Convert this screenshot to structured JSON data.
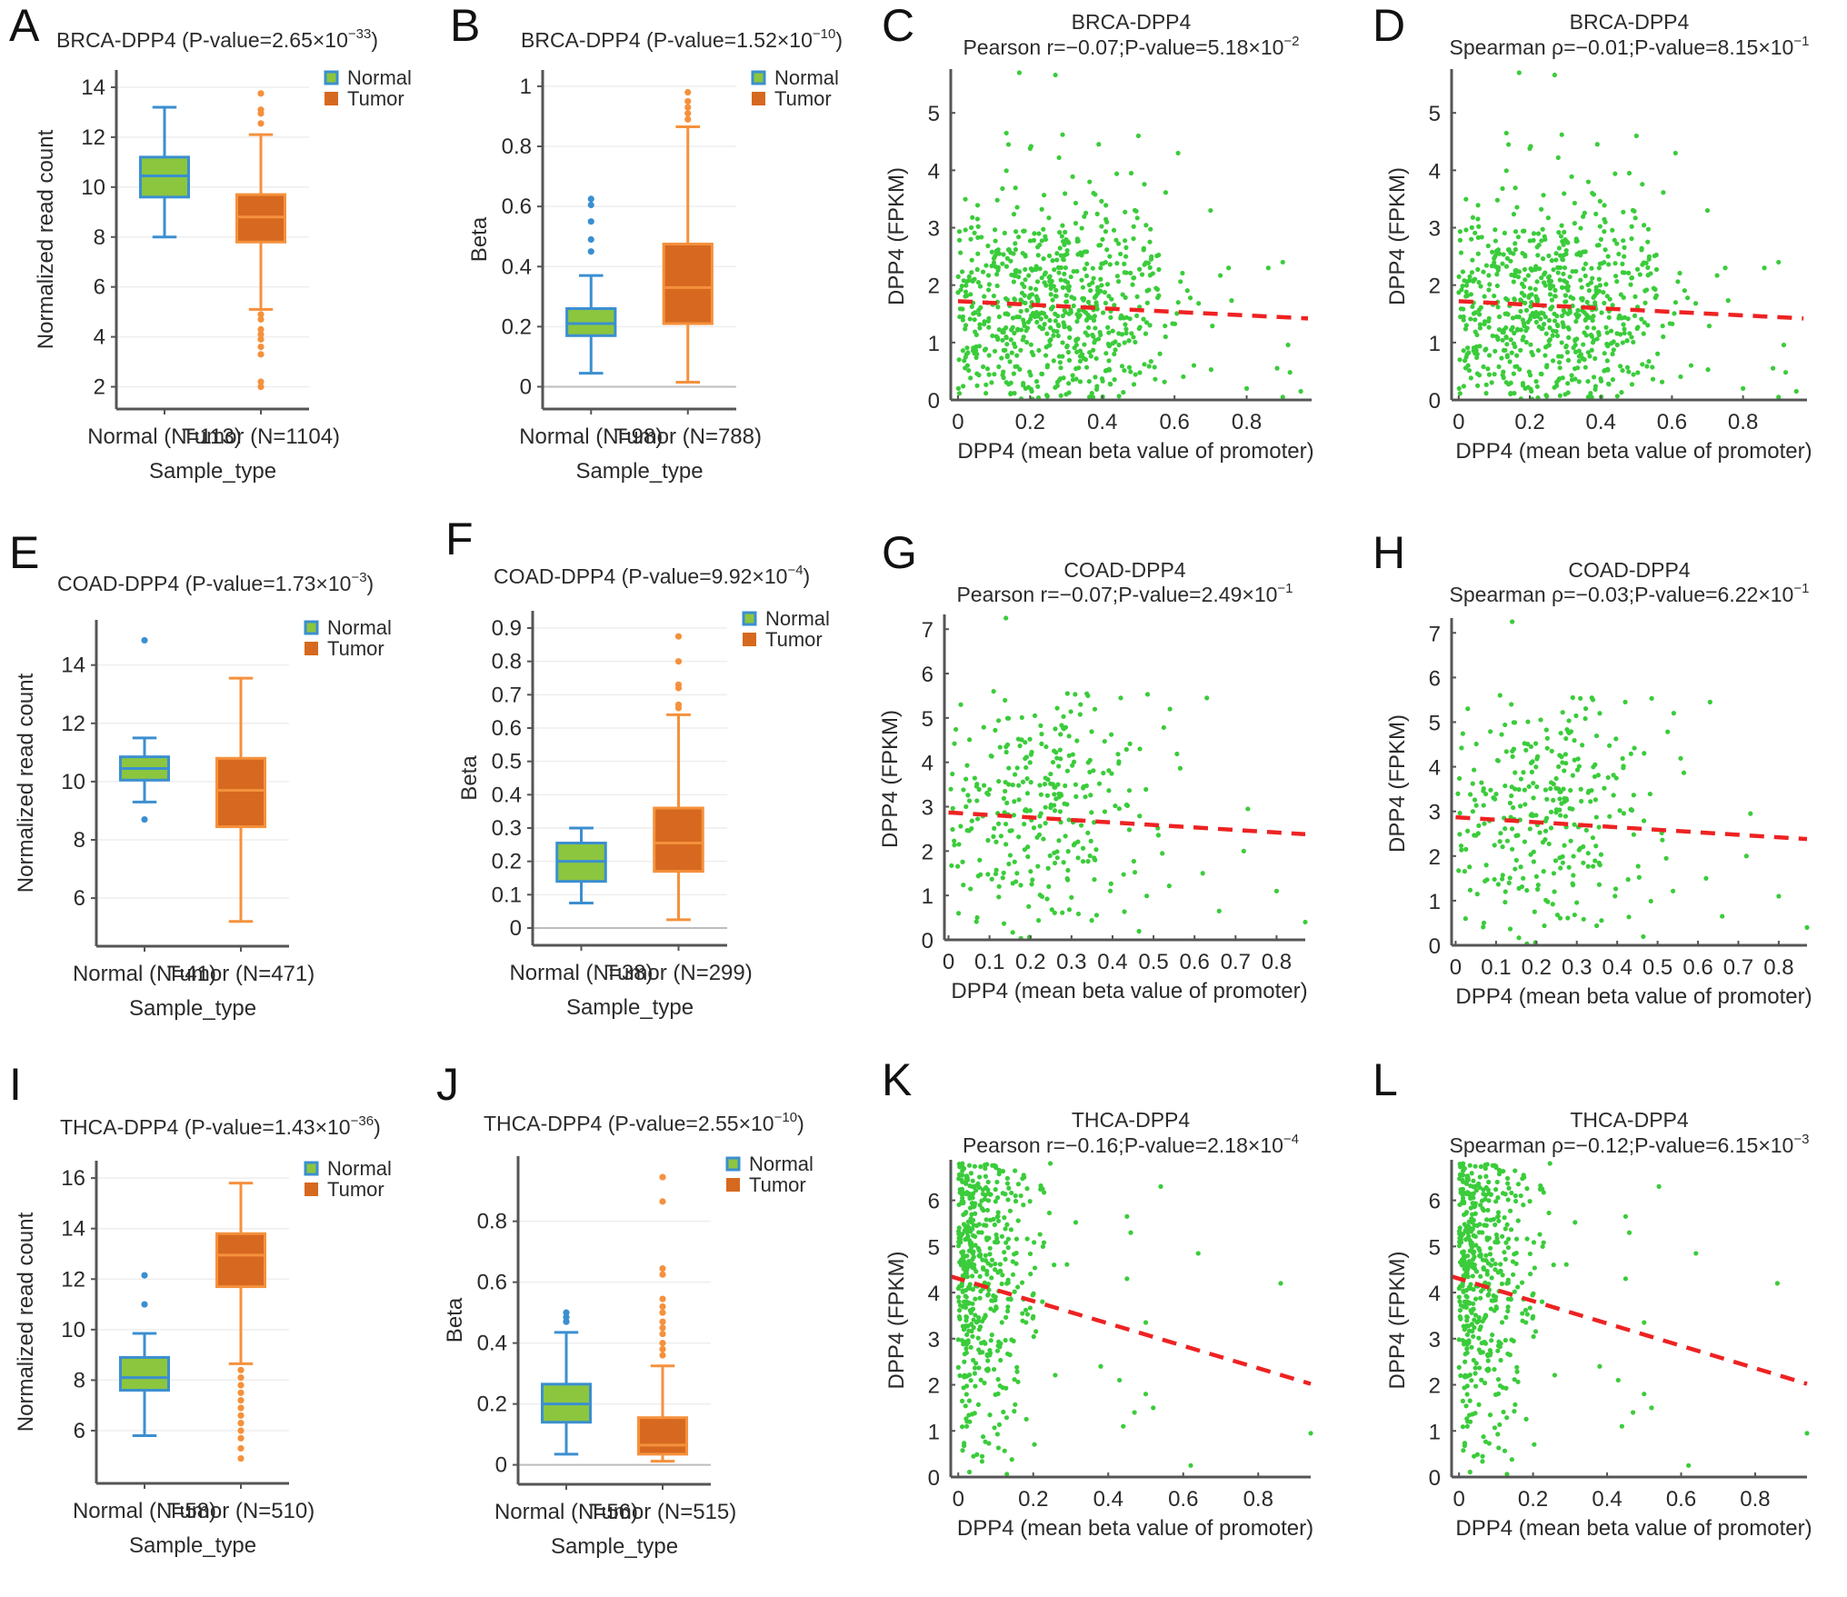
{
  "figure": {
    "colors": {
      "normal_fill": "#8cc63e",
      "normal_stroke": "#3b8fd0",
      "tumor_fill": "#d6691f",
      "tumor_stroke": "#f5913d",
      "scatter_point": "#3acc3a",
      "regression_line": "#ee2222",
      "axis": "#555555"
    },
    "legend": {
      "normal": "Normal",
      "tumor": "Tumor"
    }
  },
  "chart_data": [
    {
      "id": "A",
      "type": "box",
      "letter": "A",
      "title": "BRCA-DPP4 (P-value=2.65×10",
      "title_exp": "−33",
      "title_close": ")",
      "xlabel": "Sample_type",
      "ylabel": "Normalized read count",
      "ylim": [
        1.4,
        14.4
      ],
      "yticks": [
        2,
        4,
        6,
        8,
        10,
        12,
        14
      ],
      "zero_line": false,
      "groups": [
        {
          "name": "Normal",
          "label": "Normal (N=113)",
          "whisker_low": 8.0,
          "q1": 9.6,
          "median": 10.45,
          "q3": 11.2,
          "whisker_high": 13.2,
          "outliers": []
        },
        {
          "name": "Tumor",
          "label": "Tumor (N=1104)",
          "whisker_low": 5.1,
          "q1": 7.8,
          "median": 8.8,
          "q3": 9.7,
          "whisker_high": 12.1,
          "outliers": [
            13.75,
            13.1,
            12.95,
            12.55,
            4.9,
            4.7,
            4.3,
            4.1,
            3.9,
            3.6,
            3.3,
            2.2,
            2.0
          ]
        }
      ]
    },
    {
      "id": "B",
      "type": "box",
      "letter": "B",
      "title": "BRCA-DPP4 (P-value=1.52×10",
      "title_exp": "−10",
      "title_close": ")",
      "xlabel": "Sample_type",
      "ylabel": "Beta",
      "ylim": [
        -0.05,
        1.03
      ],
      "yticks": [
        0,
        0.2,
        0.4,
        0.6,
        0.8,
        1
      ],
      "zero_line": true,
      "groups": [
        {
          "name": "Normal",
          "label": "Normal (N=98)",
          "whisker_low": 0.045,
          "q1": 0.17,
          "median": 0.21,
          "q3": 0.26,
          "whisker_high": 0.37,
          "outliers": [
            0.625,
            0.605,
            0.55,
            0.49,
            0.45
          ]
        },
        {
          "name": "Tumor",
          "label": "Tumor (N=788)",
          "whisker_low": 0.015,
          "q1": 0.21,
          "median": 0.33,
          "q3": 0.475,
          "whisker_high": 0.865,
          "outliers": [
            0.98,
            0.95,
            0.93,
            0.91,
            0.89
          ]
        }
      ]
    },
    {
      "id": "C",
      "type": "scatter",
      "letter": "C",
      "title": "BRCA-DPP4",
      "subtitle": "Pearson r=−0.07;P-value=5.18×10",
      "subtitle_exp": "−2",
      "xlabel": "DPP4 (mean beta value of promoter)",
      "ylabel": "DPP4 (FPKM)",
      "xlim": [
        -0.02,
        0.98
      ],
      "ylim": [
        0,
        5.7
      ],
      "xticks": [
        0,
        0.2,
        0.4,
        0.6,
        0.8
      ],
      "yticks": [
        0,
        1,
        2,
        3,
        4,
        5
      ],
      "regression": {
        "x": [
          0,
          0.97
        ],
        "y": [
          1.72,
          1.42
        ]
      },
      "cloud": {
        "seed": 11,
        "n": 700,
        "x_center": 0.28,
        "x_spread": 0.17,
        "y_center": 1.55,
        "y_spread": 0.95,
        "x_max": 0.97,
        "y_max": 5.7
      },
      "points": [
        [
          0.17,
          5.7
        ],
        [
          0.27,
          5.66
        ],
        [
          0.29,
          4.62
        ],
        [
          0.5,
          4.6
        ],
        [
          0.61,
          4.3
        ],
        [
          0.14,
          4.45
        ],
        [
          0.2,
          4.38
        ],
        [
          0.28,
          4.22
        ],
        [
          0.44,
          3.94
        ],
        [
          0.48,
          3.95
        ],
        [
          0.95,
          0.15
        ],
        [
          0.92,
          0.48
        ],
        [
          0.9,
          0.05
        ],
        [
          0.8,
          0.2
        ],
        [
          0.86,
          2.3
        ],
        [
          0.9,
          2.4
        ],
        [
          0.75,
          2.3
        ],
        [
          0.7,
          3.3
        ]
      ]
    },
    {
      "id": "D",
      "type": "scatter",
      "letter": "D",
      "title": "BRCA-DPP4",
      "subtitle": "Spearman ρ=−0.01;P-value=8.15×10",
      "subtitle_exp": "−1",
      "xlabel": "DPP4 (mean beta value of promoter)",
      "ylabel": "DPP4 (FPKM)",
      "xlim": [
        -0.02,
        0.98
      ],
      "ylim": [
        0,
        5.7
      ],
      "xticks": [
        0,
        0.2,
        0.4,
        0.6,
        0.8
      ],
      "yticks": [
        0,
        1,
        2,
        3,
        4,
        5
      ],
      "regression": {
        "x": [
          0,
          0.97
        ],
        "y": [
          1.72,
          1.42
        ]
      },
      "cloud": {
        "seed": 11,
        "n": 700,
        "x_center": 0.28,
        "x_spread": 0.17,
        "y_center": 1.55,
        "y_spread": 0.95,
        "x_max": 0.97,
        "y_max": 5.7
      },
      "points": [
        [
          0.17,
          5.7
        ],
        [
          0.27,
          5.66
        ],
        [
          0.29,
          4.62
        ],
        [
          0.5,
          4.6
        ],
        [
          0.61,
          4.3
        ],
        [
          0.14,
          4.45
        ],
        [
          0.2,
          4.38
        ],
        [
          0.28,
          4.22
        ],
        [
          0.44,
          3.94
        ],
        [
          0.48,
          3.95
        ],
        [
          0.95,
          0.15
        ],
        [
          0.92,
          0.48
        ],
        [
          0.9,
          0.05
        ],
        [
          0.8,
          0.2
        ],
        [
          0.86,
          2.3
        ],
        [
          0.9,
          2.4
        ],
        [
          0.75,
          2.3
        ],
        [
          0.7,
          3.3
        ]
      ]
    },
    {
      "id": "E",
      "type": "box",
      "letter": "E",
      "title": "COAD-DPP4 (P-value=1.73×10",
      "title_exp": "−3",
      "title_close": ")",
      "xlabel": "Sample_type",
      "ylabel": "Normalized read count",
      "ylim": [
        4.6,
        15.3
      ],
      "yticks": [
        6,
        8,
        10,
        12,
        14
      ],
      "zero_line": false,
      "groups": [
        {
          "name": "Normal",
          "label": "Normal (N=41)",
          "whisker_low": 9.3,
          "q1": 10.05,
          "median": 10.45,
          "q3": 10.85,
          "whisker_high": 11.5,
          "outliers": [
            14.85,
            8.7
          ]
        },
        {
          "name": "Tumor",
          "label": "Tumor (N=471)",
          "whisker_low": 5.2,
          "q1": 8.45,
          "median": 9.7,
          "q3": 10.8,
          "whisker_high": 13.55,
          "outliers": []
        }
      ]
    },
    {
      "id": "F",
      "type": "box",
      "letter": "F",
      "title": "COAD-DPP4 (P-value=9.92×10",
      "title_exp": "−4",
      "title_close": ")",
      "xlabel": "Sample_type",
      "ylabel": "Beta",
      "ylim": [
        -0.03,
        0.93
      ],
      "yticks": [
        0,
        0.1,
        0.2,
        0.3,
        0.4,
        0.5,
        0.6,
        0.7,
        0.8,
        0.9
      ],
      "zero_line": true,
      "groups": [
        {
          "name": "Normal",
          "label": "Normal (N=38)",
          "whisker_low": 0.075,
          "q1": 0.14,
          "median": 0.2,
          "q3": 0.255,
          "whisker_high": 0.3,
          "outliers": []
        },
        {
          "name": "Tumor",
          "label": "Tumor (N=299)",
          "whisker_low": 0.025,
          "q1": 0.17,
          "median": 0.255,
          "q3": 0.36,
          "whisker_high": 0.64,
          "outliers": [
            0.875,
            0.8,
            0.73,
            0.72,
            0.67,
            0.66
          ]
        }
      ]
    },
    {
      "id": "G",
      "type": "scatter",
      "letter": "G",
      "title": "COAD-DPP4",
      "subtitle": "Pearson r=−0.07;P-value=2.49×10",
      "subtitle_exp": "−1",
      "xlabel": "DPP4 (mean beta value of promoter)",
      "ylabel": "DPP4 (FPKM)",
      "xlim": [
        -0.01,
        0.87
      ],
      "ylim": [
        0,
        7.25
      ],
      "xticks": [
        0,
        0.1,
        0.2,
        0.3,
        0.4,
        0.5,
        0.6,
        0.7,
        0.8
      ],
      "yticks": [
        0,
        1,
        2,
        3,
        4,
        5,
        6,
        7
      ],
      "regression": {
        "x": [
          0,
          0.87
        ],
        "y": [
          2.87,
          2.38
        ]
      },
      "cloud": {
        "seed": 23,
        "n": 300,
        "x_center": 0.24,
        "x_spread": 0.13,
        "y_center": 2.85,
        "y_spread": 1.3,
        "x_max": 0.87,
        "y_max": 5.6
      },
      "points": [
        [
          0.14,
          7.25
        ],
        [
          0.11,
          5.6
        ],
        [
          0.29,
          5.55
        ],
        [
          0.34,
          5.5
        ],
        [
          0.42,
          5.45
        ],
        [
          0.63,
          5.45
        ],
        [
          0.54,
          5.2
        ],
        [
          0.03,
          5.3
        ],
        [
          0.73,
          2.95
        ],
        [
          0.72,
          2.0
        ],
        [
          0.8,
          1.1
        ],
        [
          0.87,
          0.4
        ],
        [
          0.66,
          0.65
        ],
        [
          0.62,
          1.5
        ]
      ]
    },
    {
      "id": "H",
      "type": "scatter",
      "letter": "H",
      "title": "COAD-DPP4",
      "subtitle": "Spearman ρ=−0.03;P-value=6.22×10",
      "subtitle_exp": "−1",
      "xlabel": "DPP4 (mean beta value of promoter)",
      "ylabel": "DPP4 (FPKM)",
      "xlim": [
        -0.01,
        0.87
      ],
      "ylim": [
        0,
        7.25
      ],
      "xticks": [
        0,
        0.1,
        0.2,
        0.3,
        0.4,
        0.5,
        0.6,
        0.7,
        0.8
      ],
      "yticks": [
        0,
        1,
        2,
        3,
        4,
        5,
        6,
        7
      ],
      "regression": {
        "x": [
          0,
          0.87
        ],
        "y": [
          2.87,
          2.38
        ]
      },
      "cloud": {
        "seed": 23,
        "n": 300,
        "x_center": 0.24,
        "x_spread": 0.13,
        "y_center": 2.85,
        "y_spread": 1.3,
        "x_max": 0.87,
        "y_max": 5.6
      },
      "points": [
        [
          0.14,
          7.25
        ],
        [
          0.11,
          5.6
        ],
        [
          0.29,
          5.55
        ],
        [
          0.34,
          5.5
        ],
        [
          0.42,
          5.45
        ],
        [
          0.63,
          5.45
        ],
        [
          0.54,
          5.2
        ],
        [
          0.03,
          5.3
        ],
        [
          0.73,
          2.95
        ],
        [
          0.72,
          2.0
        ],
        [
          0.8,
          1.1
        ],
        [
          0.87,
          0.4
        ],
        [
          0.66,
          0.65
        ],
        [
          0.62,
          1.5
        ]
      ]
    },
    {
      "id": "I",
      "type": "box",
      "letter": "I",
      "title": "THCA-DPP4 (P-value=1.43×10",
      "title_exp": "−36",
      "title_close": ")",
      "xlabel": "Sample_type",
      "ylabel": "Normalized read count",
      "ylim": [
        4.2,
        16.4
      ],
      "yticks": [
        6,
        8,
        10,
        12,
        14,
        16
      ],
      "zero_line": false,
      "groups": [
        {
          "name": "Normal",
          "label": "Normal (N=58)",
          "whisker_low": 5.8,
          "q1": 7.6,
          "median": 8.1,
          "q3": 8.9,
          "whisker_high": 9.85,
          "outliers": [
            12.15,
            11.0
          ]
        },
        {
          "name": "Tumor",
          "label": "Tumor (N=510)",
          "whisker_low": 8.65,
          "q1": 11.7,
          "median": 12.95,
          "q3": 13.8,
          "whisker_high": 15.8,
          "outliers": [
            8.4,
            8.1,
            7.8,
            7.5,
            7.2,
            6.9,
            6.6,
            6.3,
            6.0,
            5.7,
            5.3,
            4.9
          ]
        }
      ]
    },
    {
      "id": "J",
      "type": "box",
      "letter": "J",
      "title": "THCA-DPP4 (P-value=2.55×10",
      "title_exp": "−10",
      "title_close": ")",
      "xlabel": "Sample_type",
      "ylabel": "Beta",
      "ylim": [
        -0.04,
        0.99
      ],
      "yticks": [
        0,
        0.2,
        0.4,
        0.6,
        0.8
      ],
      "zero_line": true,
      "groups": [
        {
          "name": "Normal",
          "label": "Normal (N=56)",
          "whisker_low": 0.035,
          "q1": 0.14,
          "median": 0.2,
          "q3": 0.265,
          "whisker_high": 0.435,
          "outliers": [
            0.5,
            0.485,
            0.47
          ]
        },
        {
          "name": "Tumor",
          "label": "Tumor (N=515)",
          "whisker_low": 0.012,
          "q1": 0.035,
          "median": 0.065,
          "q3": 0.155,
          "whisker_high": 0.325,
          "outliers": [
            0.945,
            0.865,
            0.645,
            0.625,
            0.545,
            0.52,
            0.5,
            0.47,
            0.45,
            0.43,
            0.4,
            0.38,
            0.36
          ]
        }
      ]
    },
    {
      "id": "K",
      "type": "scatter",
      "letter": "K",
      "title": "THCA-DPP4",
      "subtitle": "Pearson r=−0.16;P-value=2.18×10",
      "subtitle_exp": "−4",
      "xlabel": "DPP4 (mean beta value of promoter)",
      "ylabel": "DPP4 (FPKM)",
      "xlim": [
        -0.02,
        0.94
      ],
      "ylim": [
        0,
        6.8
      ],
      "xticks": [
        0,
        0.2,
        0.4,
        0.6,
        0.8
      ],
      "yticks": [
        0,
        1,
        2,
        3,
        4,
        5,
        6
      ],
      "regression": {
        "x": [
          -0.02,
          0.94
        ],
        "y": [
          4.35,
          2.02
        ]
      },
      "cloud": {
        "seed": 37,
        "n": 500,
        "x_center": 0.04,
        "x_spread": 0.09,
        "y_center": 4.5,
        "y_spread": 1.9,
        "x_max": 0.55,
        "y_max": 6.8
      },
      "points": [
        [
          0.54,
          6.3
        ],
        [
          0.64,
          4.85
        ],
        [
          0.86,
          4.2
        ],
        [
          0.94,
          0.95
        ],
        [
          0.62,
          0.25
        ],
        [
          0.5,
          1.8
        ],
        [
          0.52,
          1.5
        ],
        [
          0.47,
          1.4
        ],
        [
          0.43,
          2.1
        ],
        [
          0.44,
          1.1
        ],
        [
          0.38,
          2.4
        ],
        [
          0.45,
          4.3
        ],
        [
          0.46,
          5.3
        ],
        [
          0.45,
          5.65
        ],
        [
          0.5,
          3.35
        ]
      ]
    },
    {
      "id": "L",
      "type": "scatter",
      "letter": "L",
      "title": "THCA-DPP4",
      "subtitle": "Spearman ρ=−0.12;P-value=6.15×10",
      "subtitle_exp": "−3",
      "xlabel": "DPP4 (mean beta value of promoter)",
      "ylabel": "DPP4 (FPKM)",
      "xlim": [
        -0.02,
        0.94
      ],
      "ylim": [
        0,
        6.8
      ],
      "xticks": [
        0,
        0.2,
        0.4,
        0.6,
        0.8
      ],
      "yticks": [
        0,
        1,
        2,
        3,
        4,
        5,
        6
      ],
      "regression": {
        "x": [
          -0.02,
          0.94
        ],
        "y": [
          4.35,
          2.02
        ]
      },
      "cloud": {
        "seed": 37,
        "n": 500,
        "x_center": 0.04,
        "x_spread": 0.09,
        "y_center": 4.5,
        "y_spread": 1.9,
        "x_max": 0.55,
        "y_max": 6.8
      },
      "points": [
        [
          0.54,
          6.3
        ],
        [
          0.64,
          4.85
        ],
        [
          0.86,
          4.2
        ],
        [
          0.94,
          0.95
        ],
        [
          0.62,
          0.25
        ],
        [
          0.5,
          1.8
        ],
        [
          0.52,
          1.5
        ],
        [
          0.47,
          1.4
        ],
        [
          0.43,
          2.1
        ],
        [
          0.44,
          1.1
        ],
        [
          0.38,
          2.4
        ],
        [
          0.45,
          4.3
        ],
        [
          0.46,
          5.3
        ],
        [
          0.45,
          5.65
        ],
        [
          0.5,
          3.35
        ]
      ]
    }
  ]
}
